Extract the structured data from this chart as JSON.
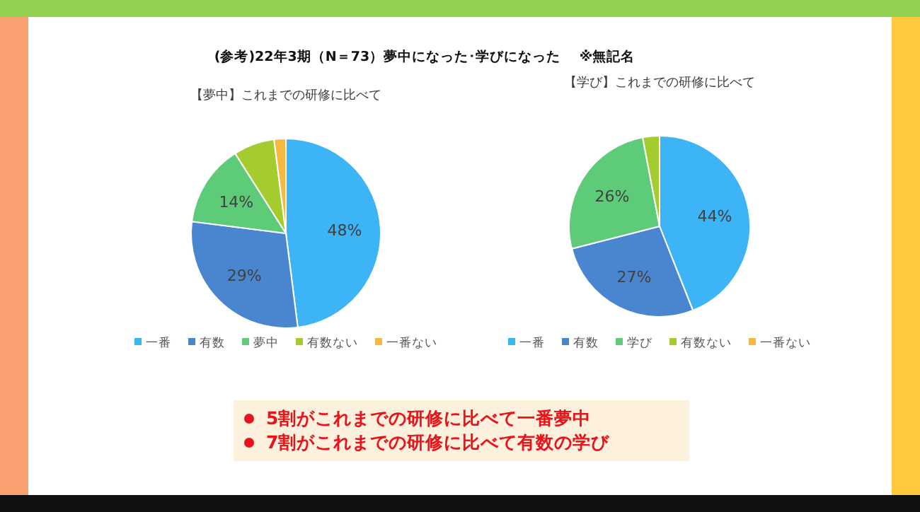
{
  "chart_data": [
    {
      "type": "other",
      "title": "(参考)22年3期（N＝73）夢中になった･学びになった　 ※無記名",
      "annotations": [
        "5割がこれまでの研修に比べて一番夢中",
        "7割がこれまでの研修に比べて有数の学び"
      ]
    },
    {
      "type": "pie",
      "title": "【夢中】これまでの研修に比べて",
      "categories": [
        "一番",
        "有数",
        "夢中",
        "有数ない",
        "一番ない"
      ],
      "values": [
        48,
        29,
        14,
        7,
        2
      ],
      "value_labels": [
        "48%",
        "29%",
        "14%",
        null,
        null
      ],
      "colors": [
        "#3cb4f5",
        "#4a86d0",
        "#5ecb78",
        "#a4cc2e",
        "#f5b942"
      ],
      "legend": "bottom"
    },
    {
      "type": "pie",
      "title": "【学び】これまでの研修に比べて",
      "categories": [
        "一番",
        "有数",
        "学び",
        "有数ない",
        "一番ない"
      ],
      "values": [
        44,
        27,
        26,
        3,
        0
      ],
      "value_labels": [
        "44%",
        "27%",
        "26%",
        null,
        null
      ],
      "colors": [
        "#3cb4f5",
        "#4a86d0",
        "#5ecb78",
        "#a4cc2e",
        "#f5b942"
      ],
      "legend": "bottom"
    }
  ]
}
